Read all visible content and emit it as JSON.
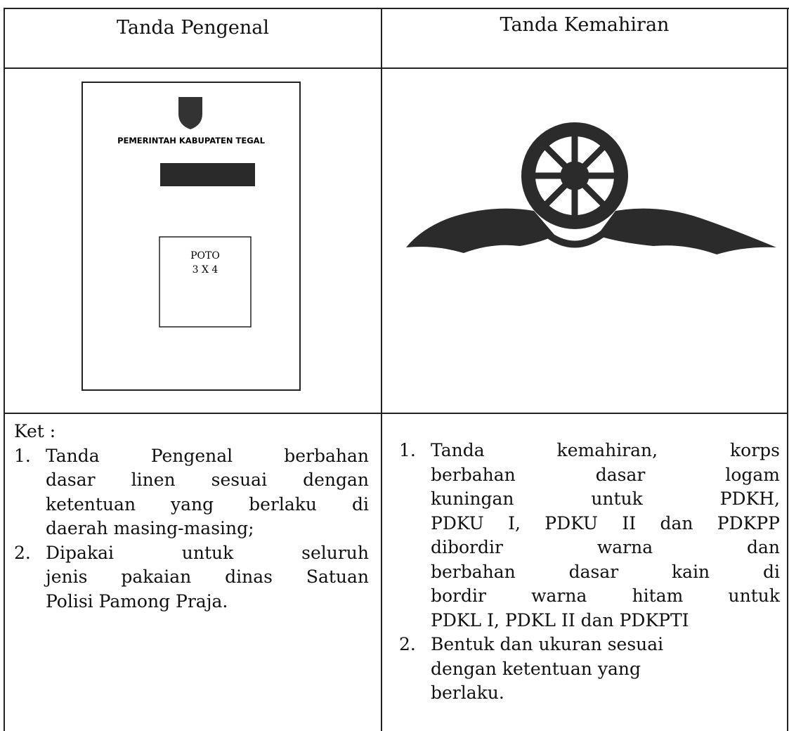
{
  "table": {
    "headers": [
      "Tanda Pengenal",
      "Tanda Kemahiran"
    ],
    "card": {
      "org": "PEMERINTAH KABUPATEN TEGAL",
      "photo": [
        "POTO",
        "3 X 4"
      ]
    },
    "left": {
      "label": "Ket :",
      "items": [
        {
          "number": "1.",
          "lines": [
            "Tanda Pengenal berbahan",
            "dasar linen sesuai dengan",
            "ketentuan yang berlaku di",
            "daerah masing-masing;"
          ]
        },
        {
          "number": "2.",
          "lines": [
            "Dipakai untuk seluruh",
            "jenis pakaian dinas Satuan",
            "Polisi Pamong Praja."
          ]
        }
      ]
    },
    "right": {
      "items": [
        {
          "number": "1.",
          "lines": [
            "Tanda kemahiran, korps",
            "berbahan dasar logam",
            "kuningan untuk PDKH,",
            "PDKU I, PDKU II dan PDKPP",
            "dibordir warna dan",
            "berbahan dasar kain di",
            "bordir warna hitam untuk",
            "PDKL I, PDKL II dan PDKPTI"
          ]
        },
        {
          "number": "2.",
          "lines": [
            "Bentuk dan ukuran sesuai",
            "dengan ketentuan yang",
            "berlaku."
          ]
        }
      ]
    }
  }
}
